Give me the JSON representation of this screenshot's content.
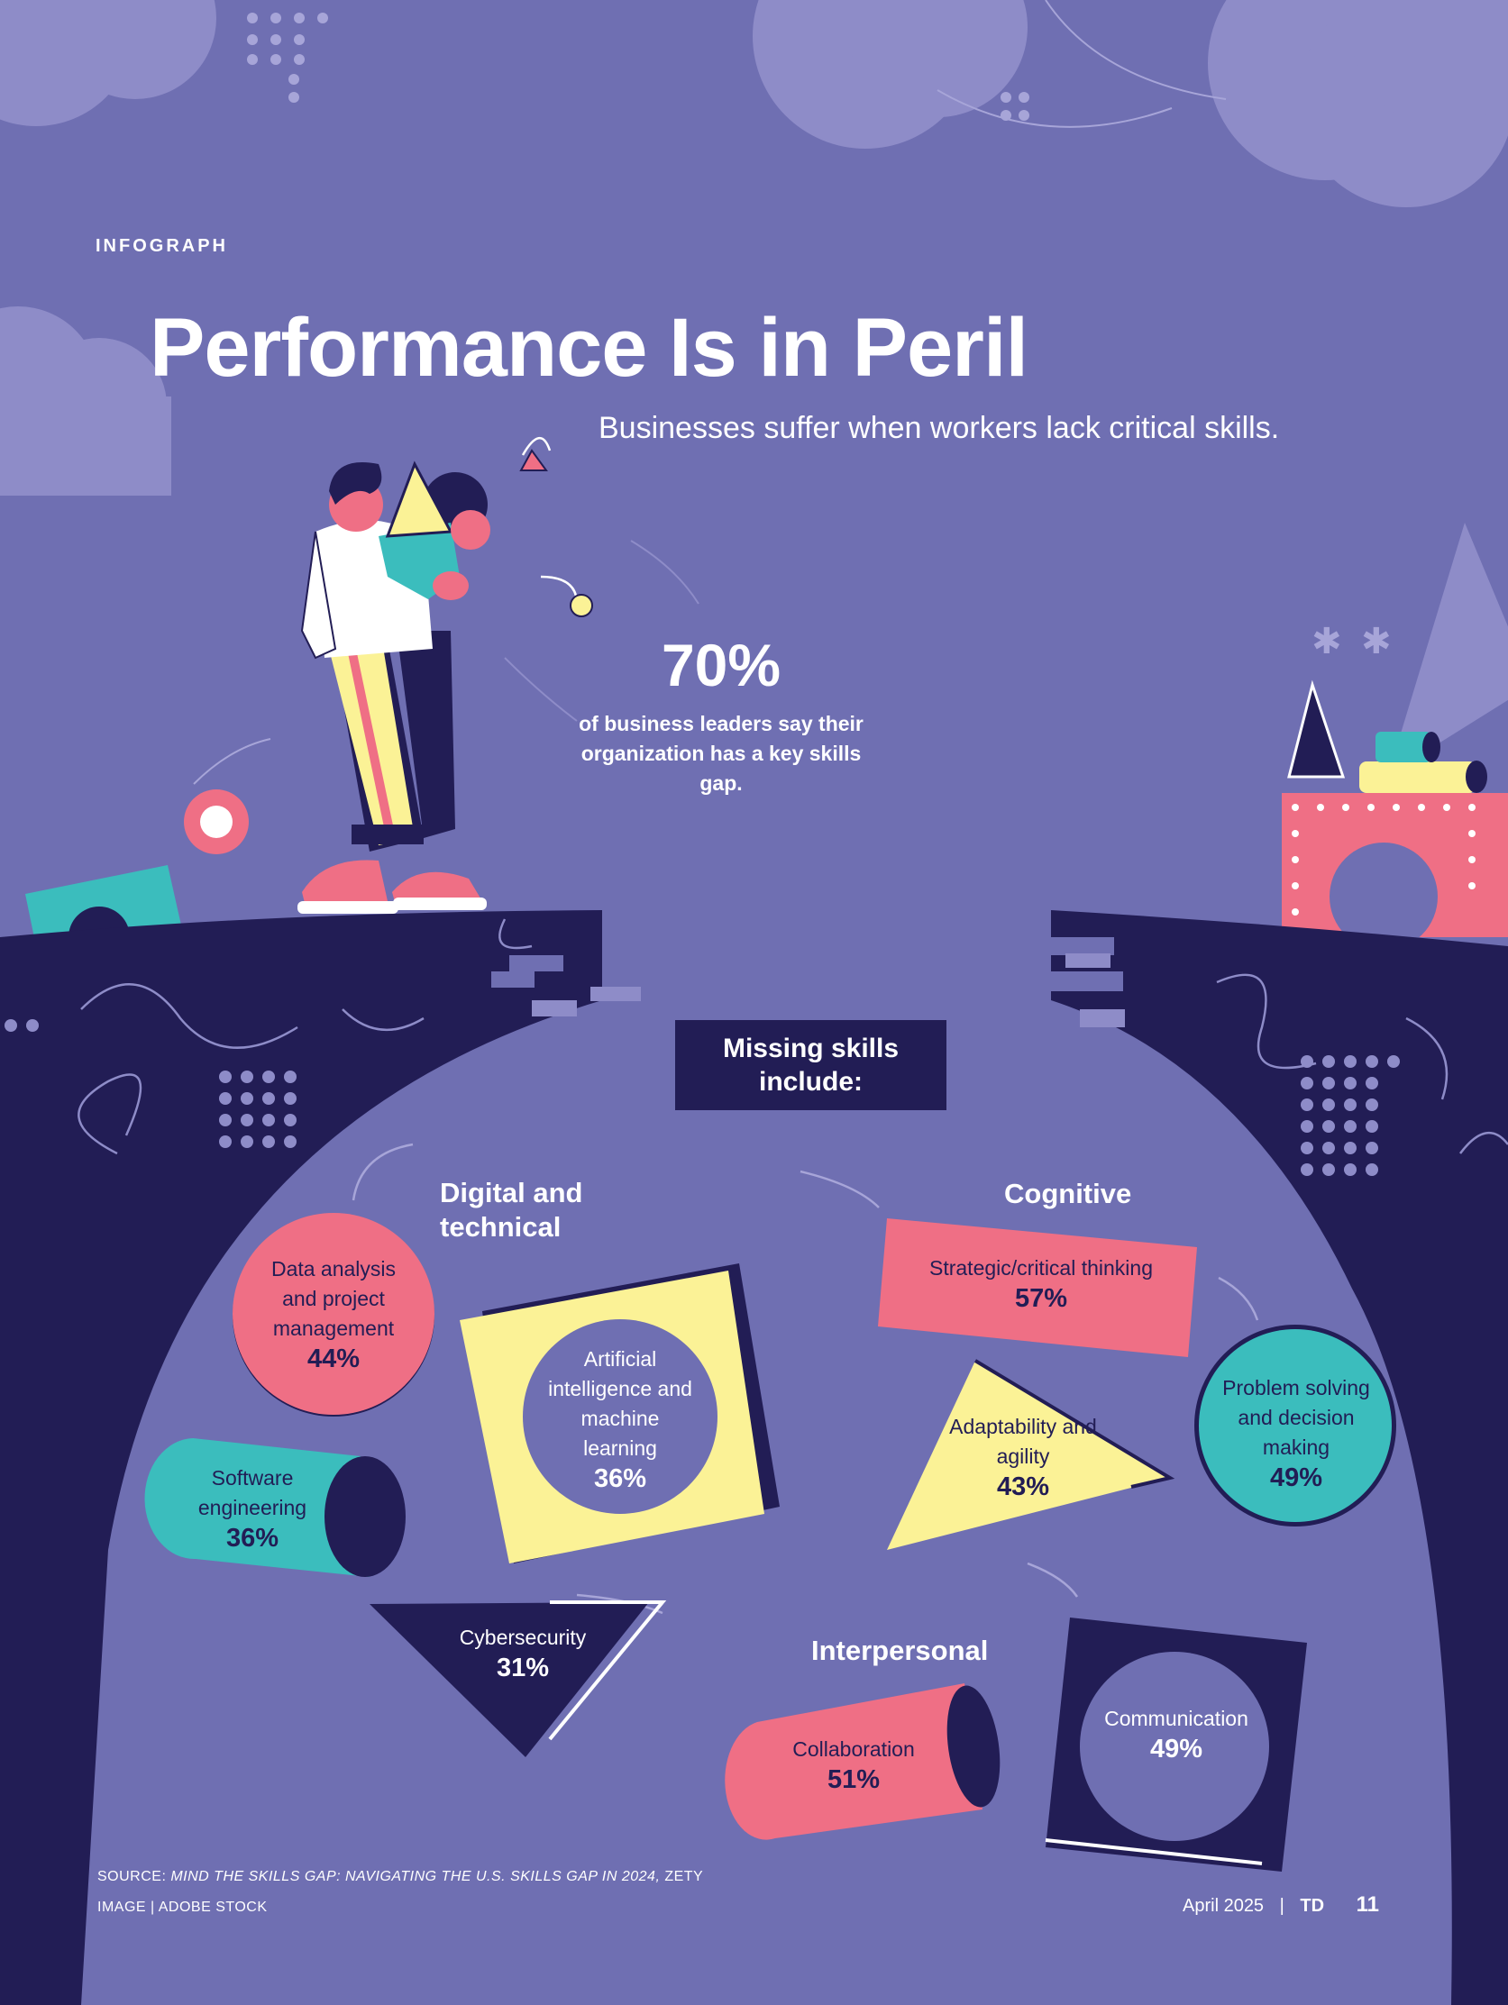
{
  "header": {
    "kicker": "INFOGRAPH",
    "title": "Performance Is in Peril",
    "subtitle": "Businesses suffer when workers lack critical skills."
  },
  "stat": {
    "value": "70%",
    "text": "of business leaders say their organization has a key skills gap."
  },
  "missing_label": "Missing skills include:",
  "categories": {
    "digital": "Digital and technical",
    "cognitive": "Cognitive",
    "interpersonal": "Interpersonal"
  },
  "skills": {
    "data_analysis": {
      "label": "Data analysis and project management",
      "value": "44%"
    },
    "ai_ml": {
      "label": "Artificial intelligence and machine learning",
      "value": "36%"
    },
    "software": {
      "label": "Software engineering",
      "value": "36%"
    },
    "cybersecurity": {
      "label": "Cybersecurity",
      "value": "31%"
    },
    "strategic": {
      "label": "Strategic/critical thinking",
      "value": "57%"
    },
    "adaptability": {
      "label": "Adaptability and agility",
      "value": "43%"
    },
    "problem_solving": {
      "label": "Problem solving and decision making",
      "value": "49%"
    },
    "collaboration": {
      "label": "Collaboration",
      "value": "51%"
    },
    "communication": {
      "label": "Communication",
      "value": "49%"
    }
  },
  "footer": {
    "source_prefix": "SOURCE: ",
    "source_title": "MIND THE SKILLS GAP: NAVIGATING THE U.S. SKILLS GAP IN 2024,",
    "source_org": " ZETY",
    "image_credit": "IMAGE | ADOBE STOCK",
    "date": "April 2025",
    "separator": "|",
    "magazine": "TD",
    "page_number": "11"
  },
  "colors": {
    "background": "#6f6fb2",
    "navy": "#221d55",
    "pink": "#ef6f85",
    "yellow": "#fbf296",
    "teal": "#3bbdbd",
    "lavender": "#8e8cc8"
  }
}
